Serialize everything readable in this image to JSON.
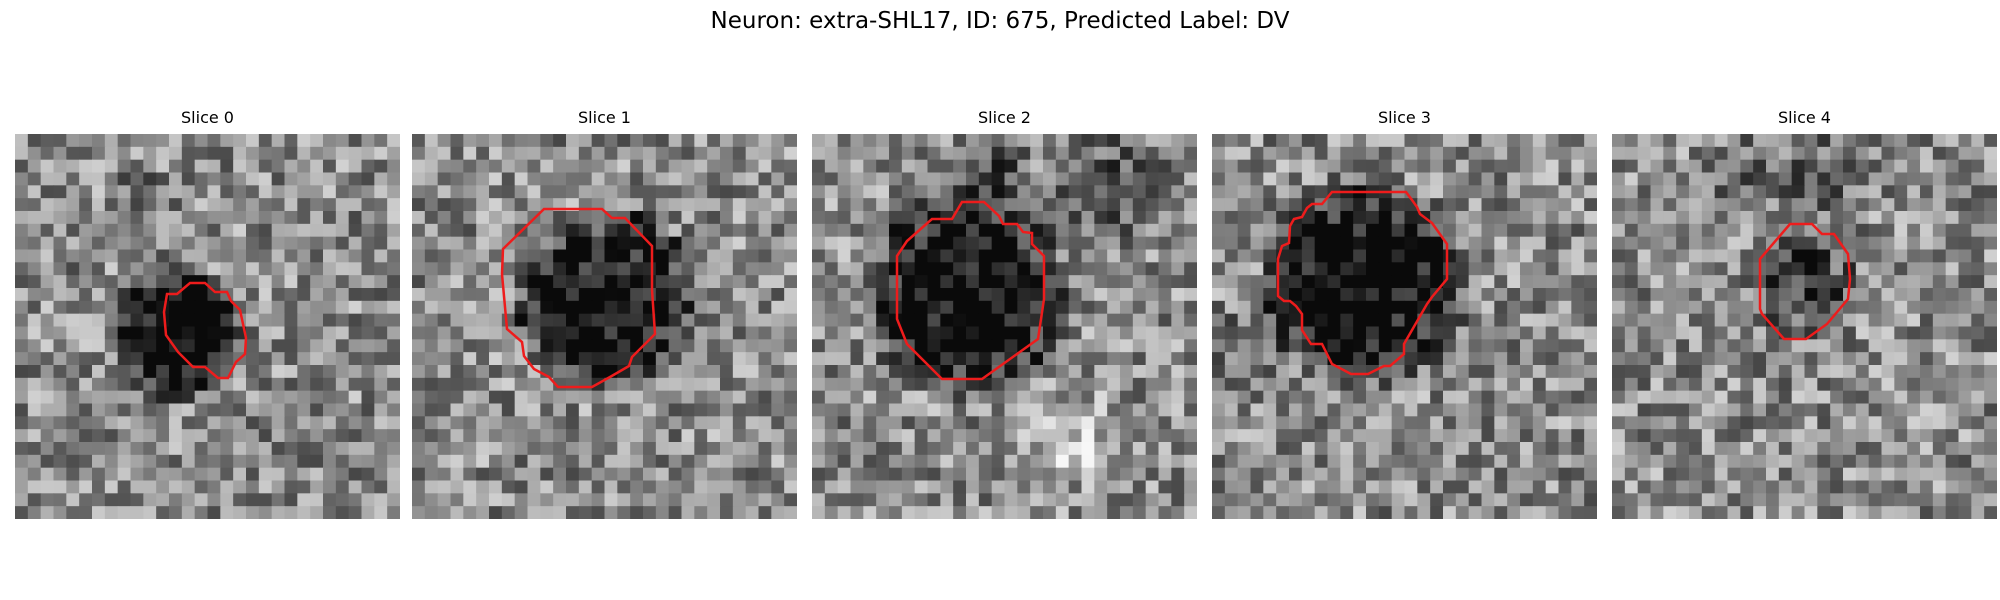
{
  "figure": {
    "title": "Neuron: extra-SHL17, ID: 675, Predicted Label: DV"
  },
  "slices": [
    {
      "label": "Slice 0",
      "contour": "small-irregular"
    },
    {
      "label": "Slice 1",
      "contour": "octagon-large"
    },
    {
      "label": "Slice 2",
      "contour": "octagon-large"
    },
    {
      "label": "Slice 3",
      "contour": "irregular-large"
    },
    {
      "label": "Slice 4",
      "contour": "octagon-small"
    }
  ],
  "colors": {
    "contour": "#ee1c1c",
    "background": "#ffffff"
  }
}
